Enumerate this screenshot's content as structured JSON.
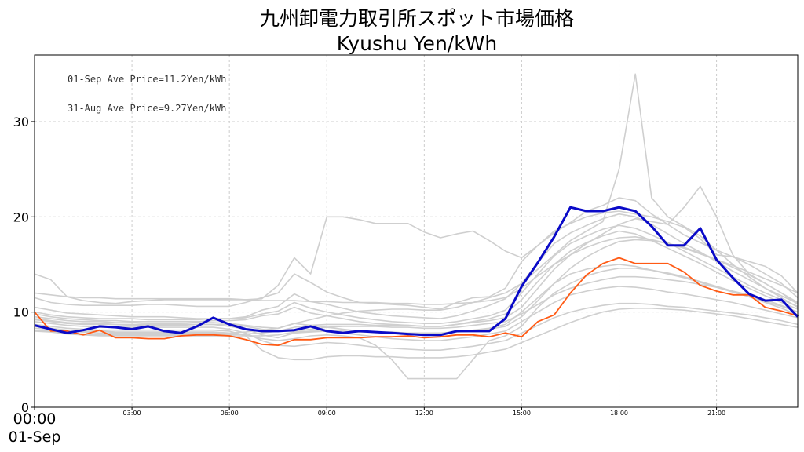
{
  "chart_data": {
    "type": "line",
    "title": "九州卸電力取引所スポット市場価格",
    "subtitle": "Kyushu Yen/kWh",
    "xlabel": "",
    "ylabel": "",
    "ylim": [
      0,
      37
    ],
    "xlim": [
      0,
      47
    ],
    "grid": true,
    "y_ticks": [
      0,
      10,
      20,
      30
    ],
    "x_tick_slots": [
      0,
      6,
      12,
      18,
      24,
      30,
      36,
      42
    ],
    "x_tick_labels": [
      "00:00",
      "03:00",
      "06:00",
      "09:00",
      "12:00",
      "15:00",
      "18:00",
      "21:00"
    ],
    "x_first_label_date": "01-Sep",
    "annotations": [
      "01-Sep Ave Price=11.2Yen/kWh",
      "31-Aug Ave Price=9.27Yen/kWh"
    ],
    "series": [
      {
        "name": "01-Sep",
        "color": "#0a0ac8",
        "values": [
          8.6,
          8.2,
          7.8,
          8.1,
          8.5,
          8.4,
          8.2,
          8.5,
          8.0,
          7.8,
          8.5,
          9.4,
          8.7,
          8.2,
          8.0,
          8.0,
          8.1,
          8.5,
          8.0,
          7.8,
          8.0,
          7.9,
          7.8,
          7.7,
          7.6,
          7.6,
          8.0,
          8.0,
          8.0,
          9.3,
          12.7,
          15.2,
          17.9,
          21.0,
          20.6,
          20.6,
          21.0,
          20.6,
          19.0,
          17.0,
          17.0,
          18.8,
          15.5,
          13.6,
          11.9,
          11.2,
          11.3,
          9.5
        ]
      },
      {
        "name": "31-Aug",
        "color": "#ff5a14",
        "values": [
          10.0,
          8.0,
          8.0,
          7.6,
          8.1,
          7.3,
          7.3,
          7.2,
          7.2,
          7.5,
          7.6,
          7.6,
          7.5,
          7.1,
          6.6,
          6.5,
          7.1,
          7.1,
          7.3,
          7.3,
          7.3,
          7.4,
          7.4,
          7.5,
          7.3,
          7.4,
          7.6,
          7.6,
          7.4,
          7.8,
          7.4,
          9.0,
          9.7,
          12.0,
          13.9,
          15.1,
          15.7,
          15.1,
          15.1,
          15.1,
          14.2,
          12.8,
          12.2,
          11.8,
          11.8,
          10.5,
          10.1,
          9.6
        ]
      }
    ],
    "background_series": [
      [
        14.0,
        13.4,
        11.6,
        11.2,
        11.0,
        10.9,
        11.1,
        11.2,
        11.3,
        11.3,
        11.3,
        11.3,
        11.3,
        11.3,
        11.4,
        12.8,
        15.7,
        14.0,
        20.0,
        20.0,
        19.7,
        19.3,
        19.3,
        19.3,
        18.4,
        17.8,
        18.2,
        18.5,
        17.5,
        16.4,
        15.7,
        17.0,
        18.5,
        19.3,
        20.0,
        20.4,
        20.6,
        20.3,
        20.0,
        19.5,
        18.9,
        17.7,
        16.0,
        15.8,
        15.3,
        14.8,
        13.8,
        12.0
      ],
      [
        11.5,
        11.0,
        10.8,
        10.7,
        10.7,
        10.7,
        10.7,
        10.8,
        10.8,
        10.7,
        10.6,
        10.6,
        10.6,
        11.0,
        11.5,
        12.0,
        14.0,
        13.1,
        12.1,
        11.5,
        11.0,
        10.9,
        10.8,
        10.7,
        10.5,
        10.3,
        11.0,
        11.5,
        11.6,
        12.5,
        15.3,
        17.0,
        18.3,
        19.4,
        20.6,
        21.2,
        22.0,
        21.7,
        20.3,
        19.2,
        18.1,
        17.3,
        16.5,
        15.8,
        15.0,
        14.0,
        13.0,
        11.5
      ],
      [
        10.5,
        10.2,
        9.9,
        9.8,
        9.7,
        9.6,
        9.5,
        9.5,
        9.5,
        9.4,
        9.3,
        9.3,
        9.3,
        9.5,
        10.2,
        10.6,
        11.9,
        11.1,
        10.8,
        10.4,
        10.0,
        9.8,
        9.6,
        9.5,
        9.4,
        9.3,
        9.6,
        10.1,
        10.7,
        11.4,
        13.0,
        15.2,
        17.2,
        18.3,
        19.1,
        19.8,
        20.3,
        20.0,
        19.2,
        18.2,
        17.2,
        16.3,
        15.3,
        14.3,
        13.4,
        12.5,
        11.7,
        10.9
      ],
      [
        10.0,
        9.7,
        9.5,
        9.4,
        9.3,
        9.3,
        9.3,
        9.2,
        9.2,
        9.2,
        9.2,
        9.3,
        9.3,
        9.4,
        9.8,
        10.1,
        11.0,
        10.4,
        10.0,
        9.7,
        9.4,
        9.2,
        9.0,
        8.9,
        8.8,
        8.8,
        9.0,
        9.3,
        9.6,
        10.2,
        12.0,
        14.0,
        15.9,
        17.2,
        18.0,
        18.7,
        19.1,
        18.8,
        18.1,
        17.3,
        16.4,
        15.5,
        14.6,
        13.7,
        12.8,
        12.0,
        11.3,
        10.6
      ],
      [
        9.8,
        9.5,
        9.3,
        9.2,
        9.1,
        9.1,
        9.0,
        9.0,
        9.0,
        9.0,
        9.0,
        9.1,
        9.1,
        9.2,
        9.6,
        9.8,
        10.5,
        9.9,
        9.6,
        9.3,
        9.0,
        8.8,
        8.7,
        8.6,
        8.5,
        8.5,
        8.7,
        9.0,
        9.3,
        9.8,
        11.3,
        13.2,
        15.0,
        16.4,
        17.3,
        18.0,
        18.5,
        18.2,
        17.5,
        16.7,
        15.9,
        15.1,
        14.2,
        13.3,
        12.5,
        11.7,
        11.0,
        10.3
      ],
      [
        9.5,
        9.3,
        9.1,
        9.0,
        9.0,
        8.9,
        8.9,
        8.8,
        8.8,
        8.8,
        8.9,
        8.9,
        8.8,
        8.6,
        8.4,
        8.3,
        8.8,
        8.6,
        8.4,
        8.2,
        8.0,
        7.9,
        7.8,
        7.8,
        7.7,
        7.7,
        7.9,
        8.1,
        8.3,
        8.7,
        10.0,
        11.5,
        13.0,
        14.0,
        14.5,
        14.8,
        15.0,
        14.8,
        14.4,
        14.0,
        13.6,
        13.1,
        12.6,
        12.1,
        11.6,
        11.1,
        10.6,
        10.0
      ],
      [
        9.2,
        9.0,
        8.8,
        8.7,
        8.7,
        8.7,
        8.6,
        8.6,
        8.6,
        8.6,
        8.7,
        8.7,
        8.5,
        8.2,
        7.6,
        7.3,
        7.8,
        7.9,
        8.0,
        7.8,
        7.6,
        7.4,
        7.2,
        7.1,
        7.0,
        7.0,
        7.2,
        7.4,
        7.7,
        8.0,
        9.0,
        10.0,
        11.0,
        11.8,
        12.2,
        12.5,
        12.7,
        12.6,
        12.4,
        12.1,
        11.9,
        11.6,
        11.3,
        11.0,
        10.6,
        10.2,
        9.8,
        9.4
      ],
      [
        9.0,
        8.8,
        8.6,
        8.5,
        8.4,
        8.4,
        8.4,
        8.4,
        8.4,
        8.4,
        8.4,
        8.4,
        8.2,
        7.8,
        7.0,
        6.5,
        6.4,
        6.6,
        6.8,
        6.7,
        6.5,
        6.3,
        6.2,
        6.1,
        6.0,
        6.0,
        6.2,
        6.4,
        6.7,
        7.0,
        7.8,
        8.6,
        9.4,
        10.0,
        10.4,
        10.7,
        10.9,
        10.9,
        10.8,
        10.6,
        10.5,
        10.3,
        10.1,
        9.9,
        9.7,
        9.4,
        9.1,
        8.7
      ],
      [
        8.7,
        8.5,
        8.3,
        8.2,
        8.1,
        8.1,
        8.1,
        8.1,
        8.1,
        8.1,
        8.1,
        8.1,
        8.0,
        7.5,
        6.0,
        5.2,
        5.0,
        5.0,
        5.3,
        5.4,
        5.4,
        5.3,
        5.3,
        5.2,
        5.2,
        5.2,
        5.3,
        5.5,
        5.8,
        6.1,
        6.8,
        7.5,
        8.2,
        8.9,
        9.5,
        10.0,
        10.3,
        10.4,
        10.4,
        10.3,
        10.2,
        10.0,
        9.8,
        9.6,
        9.3,
        9.0,
        8.7,
        8.4
      ],
      [
        8.5,
        8.3,
        8.1,
        8.0,
        8.0,
        7.9,
        7.9,
        7.9,
        7.9,
        7.9,
        7.9,
        7.9,
        7.8,
        7.6,
        7.2,
        7.0,
        7.2,
        7.5,
        7.6,
        7.5,
        7.3,
        6.5,
        5.0,
        3.0,
        3.0,
        3.0,
        3.0,
        5.0,
        7.0,
        7.5,
        8.5,
        10.5,
        12.0,
        13.0,
        13.8,
        14.3,
        14.6,
        14.6,
        14.4,
        14.1,
        13.7,
        13.2,
        12.7,
        12.2,
        11.6,
        11.0,
        10.4,
        9.7
      ],
      [
        8.3,
        8.2,
        8.0,
        7.9,
        7.8,
        7.8,
        7.8,
        7.8,
        7.8,
        7.8,
        7.8,
        7.8,
        7.8,
        7.9,
        8.1,
        8.3,
        8.8,
        9.2,
        9.6,
        9.9,
        10.1,
        10.2,
        10.3,
        10.3,
        10.2,
        10.2,
        10.5,
        11.0,
        11.5,
        12.0,
        13.0,
        14.5,
        16.0,
        17.5,
        18.5,
        19.5,
        25.0,
        35.0,
        22.0,
        20.0,
        19.0,
        18.0,
        16.5,
        15.0,
        13.7,
        12.5,
        11.5,
        10.5
      ],
      [
        8.1,
        8.0,
        7.8,
        7.7,
        7.6,
        7.6,
        7.6,
        7.6,
        7.6,
        7.6,
        7.6,
        7.6,
        7.6,
        7.7,
        7.8,
        8.0,
        8.4,
        8.6,
        8.7,
        8.7,
        8.7,
        8.6,
        8.6,
        8.6,
        8.5,
        8.5,
        8.7,
        8.9,
        9.1,
        9.4,
        10.5,
        12.5,
        14.5,
        16.0,
        17.2,
        18.2,
        19.2,
        19.8,
        19.5,
        19.2,
        21.0,
        23.2,
        20.0,
        16.0,
        14.0,
        13.0,
        12.0,
        10.8
      ],
      [
        8.0,
        7.9,
        7.7,
        7.6,
        7.5,
        7.5,
        7.5,
        7.5,
        7.5,
        7.5,
        7.5,
        7.5,
        7.5,
        7.5,
        7.5,
        7.6,
        7.9,
        8.0,
        8.0,
        8.0,
        7.9,
        7.9,
        7.9,
        7.8,
        7.8,
        7.8,
        7.9,
        8.0,
        8.2,
        8.5,
        9.5,
        11.2,
        13.0,
        14.6,
        15.8,
        16.7,
        17.4,
        17.6,
        17.5,
        17.2,
        16.8,
        16.2,
        15.5,
        14.7,
        13.9,
        13.0,
        12.0,
        11.0
      ],
      [
        12.0,
        11.8,
        11.6,
        11.5,
        11.5,
        11.4,
        11.4,
        11.4,
        11.4,
        11.4,
        11.4,
        11.4,
        11.4,
        11.3,
        11.2,
        11.2,
        11.2,
        11.1,
        11.1,
        11.0,
        11.0,
        11.0,
        10.9,
        10.9,
        10.8,
        10.8,
        10.9,
        11.0,
        11.2,
        11.5,
        12.5,
        13.8,
        15.0,
        16.0,
        16.8,
        17.4,
        17.8,
        17.9,
        17.6,
        17.2,
        16.7,
        16.1,
        15.5,
        14.9,
        14.2,
        13.5,
        12.8,
        12.0
      ],
      [
        9.3,
        9.1,
        8.9,
        8.8,
        8.8,
        8.7,
        8.7,
        8.7,
        8.7,
        8.7,
        8.7,
        8.7,
        8.7,
        8.5,
        8.2,
        8.0,
        8.0,
        8.2,
        8.4,
        8.5,
        8.5,
        8.5,
        8.4,
        8.4,
        8.3,
        8.3,
        8.4,
        8.6,
        8.8,
        9.0,
        9.8,
        10.8,
        11.8,
        12.5,
        13.0,
        13.4,
        13.7,
        13.7,
        13.6,
        13.4,
        13.2,
        12.9,
        12.6,
        12.2,
        11.8,
        11.3,
        10.7,
        10.0
      ]
    ]
  }
}
